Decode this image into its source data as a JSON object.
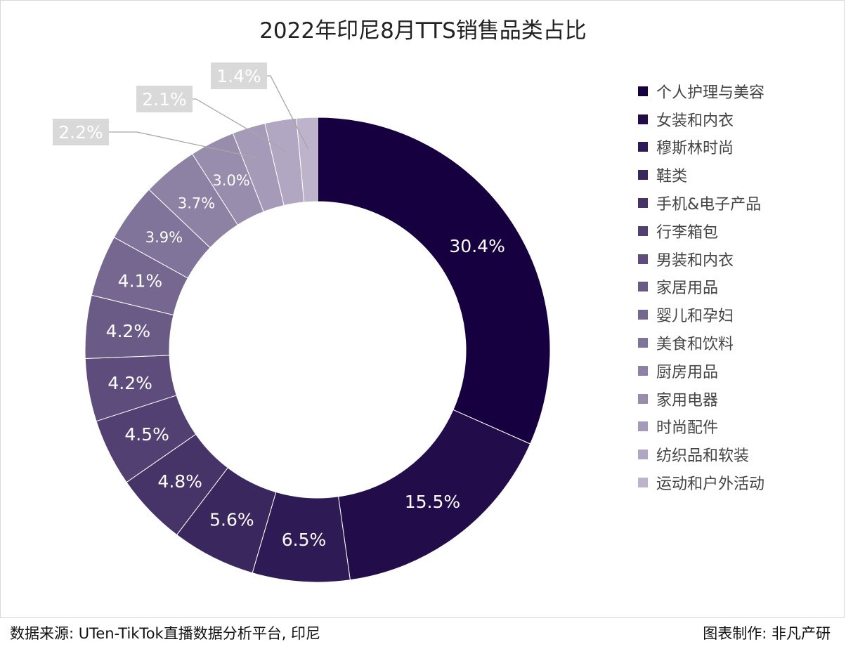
{
  "chart_data": {
    "type": "pie",
    "variant": "donut",
    "title": "2022年印尼8月TTS销售品类占比",
    "categories": [
      "个人护理与美容",
      "女装和内衣",
      "穆斯林时尚",
      "鞋类",
      "手机&电子产品",
      "行李箱包",
      "男装和内衣",
      "家居用品",
      "婴儿和孕妇",
      "美食和饮料",
      "厨房用品",
      "家用电器",
      "时尚配件",
      "纺织品和软装",
      "运动和户外活动"
    ],
    "values": [
      30.4,
      15.5,
      6.5,
      5.6,
      4.8,
      4.5,
      4.2,
      4.2,
      4.1,
      3.9,
      3.7,
      3.0,
      2.2,
      2.1,
      1.4
    ],
    "data_labels": [
      "30.4%",
      "15.5%",
      "6.5%",
      "5.6%",
      "4.8%",
      "4.5%",
      "4.2%",
      "4.2%",
      "4.1%",
      "3.9%",
      "3.7%",
      "3.0%",
      "2.2%",
      "2.1%",
      "1.4%"
    ],
    "color_start": "#160040",
    "color_end": "#bdb4cc",
    "legend_position": "right"
  },
  "footer": {
    "source": "数据来源: UTen-TikTok直播数据分析平台, 印尼",
    "credit": "图表制作: 非凡产研"
  }
}
